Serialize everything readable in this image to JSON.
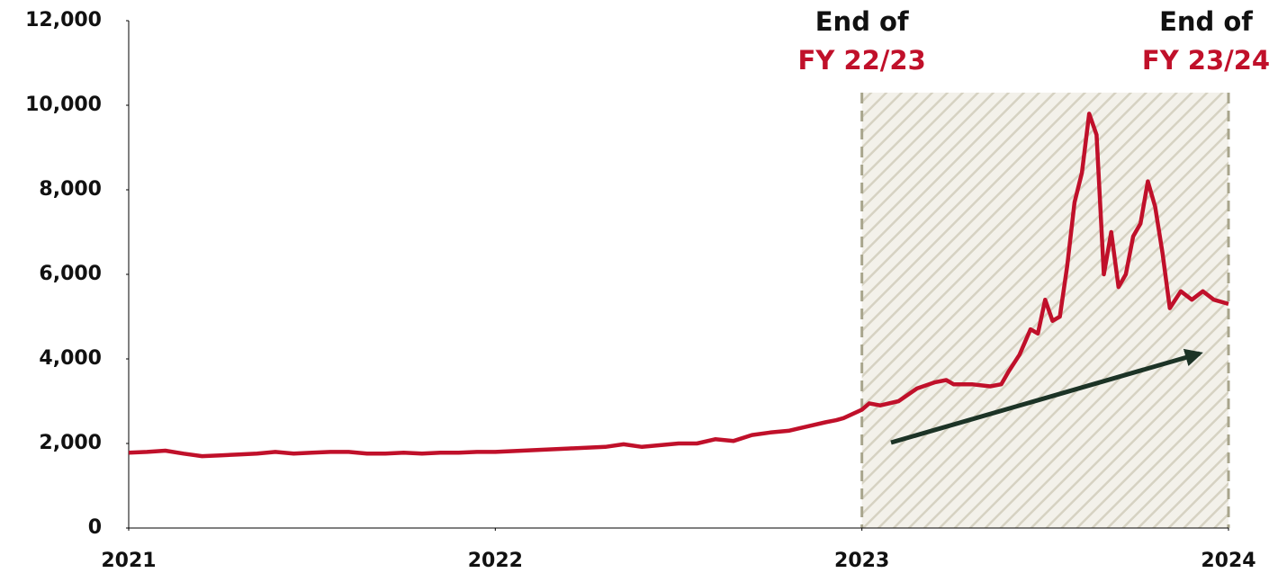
{
  "chart_data": {
    "type": "line",
    "x": [
      2021.0,
      2021.05,
      2021.1,
      2021.15,
      2021.2,
      2021.25,
      2021.3,
      2021.35,
      2021.4,
      2021.45,
      2021.5,
      2021.55,
      2021.6,
      2021.65,
      2021.7,
      2021.75,
      2021.8,
      2021.85,
      2021.9,
      2021.95,
      2022.0,
      2022.1,
      2022.2,
      2022.3,
      2022.35,
      2022.4,
      2022.45,
      2022.5,
      2022.55,
      2022.6,
      2022.65,
      2022.7,
      2022.75,
      2022.8,
      2022.85,
      2022.9,
      2022.93,
      2022.95,
      2023.0,
      2023.02,
      2023.05,
      2023.1,
      2023.15,
      2023.2,
      2023.23,
      2023.25,
      2023.3,
      2023.35,
      2023.38,
      2023.4,
      2023.43,
      2023.46,
      2023.48,
      2023.5,
      2023.52,
      2023.54,
      2023.56,
      2023.58,
      2023.6,
      2023.62,
      2023.64,
      2023.66,
      2023.68,
      2023.7,
      2023.72,
      2023.74,
      2023.76,
      2023.78,
      2023.8,
      2023.82,
      2023.84,
      2023.87,
      2023.9,
      2023.93,
      2023.96,
      2024.0
    ],
    "series": [
      {
        "color": "#c0102a",
        "values": [
          1780,
          1800,
          1830,
          1760,
          1700,
          1720,
          1740,
          1760,
          1800,
          1760,
          1780,
          1800,
          1800,
          1760,
          1760,
          1780,
          1760,
          1780,
          1780,
          1800,
          1800,
          1840,
          1880,
          1920,
          1980,
          1920,
          1960,
          2000,
          2000,
          2100,
          2060,
          2200,
          2260,
          2300,
          2400,
          2500,
          2550,
          2600,
          2800,
          2950,
          2900,
          3000,
          3300,
          3450,
          3500,
          3400,
          3400,
          3350,
          3400,
          3700,
          4100,
          4700,
          4600,
          5400,
          4900,
          5000,
          6200,
          7700,
          8400,
          9800,
          9300,
          6000,
          7000,
          5700,
          6000,
          6900,
          7200,
          8200,
          7600,
          6500,
          5200,
          5600,
          5400,
          5600,
          5400,
          5300
        ]
      }
    ],
    "xlim": [
      2021,
      2024
    ],
    "xticks": [
      2021,
      2022,
      2023,
      2024
    ],
    "ylim": [
      0,
      12000
    ],
    "yticks": [
      0,
      {
        "value": 2000,
        "label": "2,000"
      },
      {
        "value": 4000,
        "label": "4,000"
      },
      {
        "value": 6000,
        "label": "6,000"
      },
      {
        "value": 8000,
        "label": "8,000"
      },
      {
        "value": 10000,
        "label": "10,000"
      },
      {
        "value": 12000,
        "label": "12,000"
      }
    ],
    "highlight_range": [
      2023,
      2024
    ],
    "annotations": [
      {
        "x": 2023,
        "text": "End of",
        "subtext": "FY 22/23"
      },
      {
        "x": 2024,
        "text": "End of",
        "subtext": "FY 23/24"
      }
    ]
  }
}
